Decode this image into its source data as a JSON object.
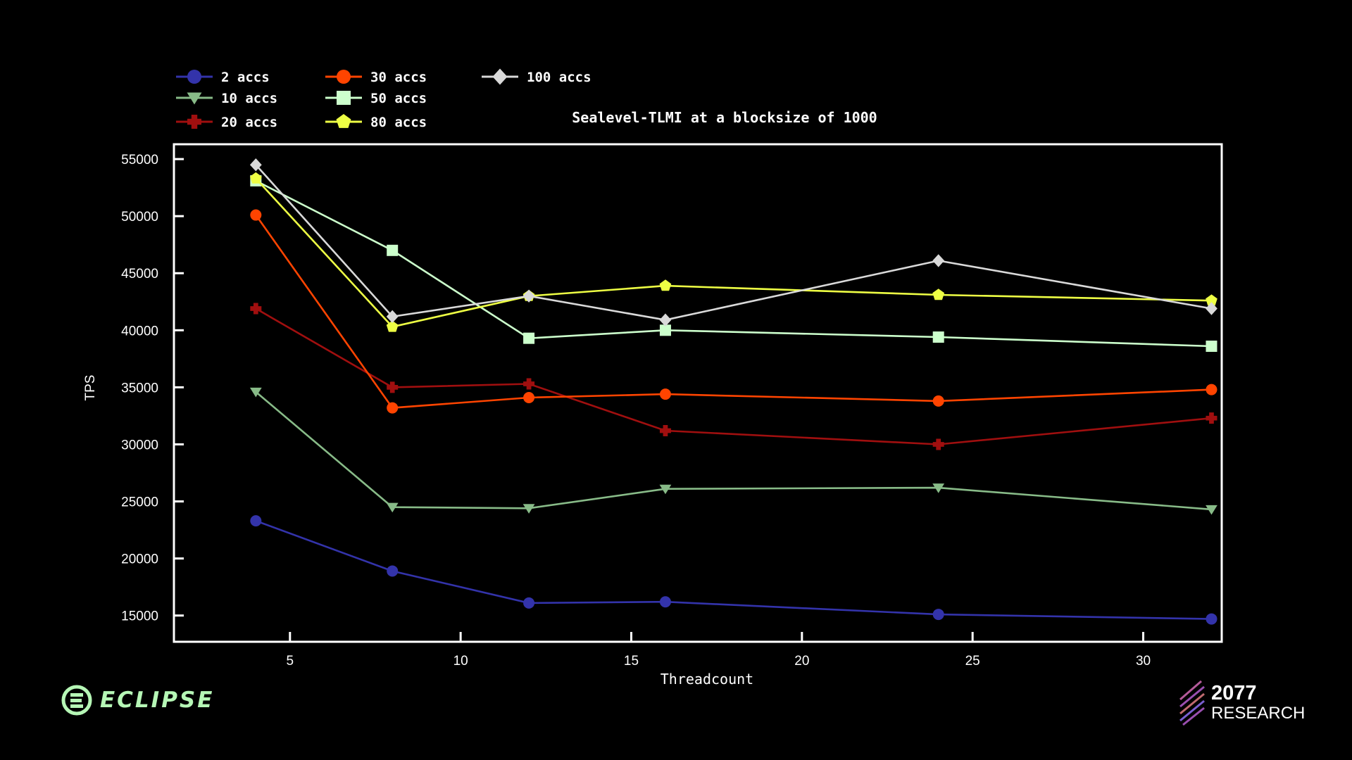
{
  "chart_data": {
    "type": "line",
    "title": "Sealevel-TLMI at a blocksize of 1000",
    "xlabel": "Threadcount",
    "ylabel": "TPS",
    "x": [
      4,
      8,
      12,
      16,
      24,
      32
    ],
    "xlim": [
      1.6,
      32.3
    ],
    "ylim": [
      12700,
      56300
    ],
    "xticks": [
      5,
      10,
      15,
      20,
      25,
      30
    ],
    "yticks": [
      15000,
      20000,
      25000,
      30000,
      35000,
      40000,
      45000,
      50000,
      55000
    ],
    "legend_position": "top-left",
    "grid": false,
    "series": [
      {
        "name": "2 accs",
        "color": "#3333aa",
        "marker": "circle",
        "values": [
          23300,
          18900,
          16100,
          16200,
          15100,
          14700
        ]
      },
      {
        "name": "10 accs",
        "color": "#88bb88",
        "marker": "triangle-down",
        "values": [
          34600,
          24500,
          24400,
          26100,
          26200,
          24300
        ]
      },
      {
        "name": "20 accs",
        "color": "#a00f0f",
        "marker": "plus",
        "values": [
          41900,
          35000,
          35300,
          31200,
          30000,
          32300
        ]
      },
      {
        "name": "30 accs",
        "color": "#ff4400",
        "marker": "circle",
        "values": [
          50100,
          33200,
          34100,
          34400,
          33800,
          34800
        ]
      },
      {
        "name": "50 accs",
        "color": "#ccffcc",
        "marker": "square",
        "values": [
          53100,
          47000,
          39300,
          40000,
          39400,
          38600
        ]
      },
      {
        "name": "80 accs",
        "color": "#eeff44",
        "marker": "pentagon",
        "values": [
          53300,
          40300,
          43000,
          43900,
          43100,
          42600
        ]
      },
      {
        "name": "100 accs",
        "color": "#d9d9d9",
        "marker": "diamond",
        "values": [
          54500,
          41200,
          43000,
          40900,
          46100,
          41900
        ]
      }
    ]
  },
  "logos": {
    "eclipse": "ECLIPSE",
    "research_number": "2077",
    "research_text": "RESEARCH"
  },
  "colors": {
    "eclipse_green": "#b6f7b6",
    "research_stripes": "#9a4fb0"
  }
}
